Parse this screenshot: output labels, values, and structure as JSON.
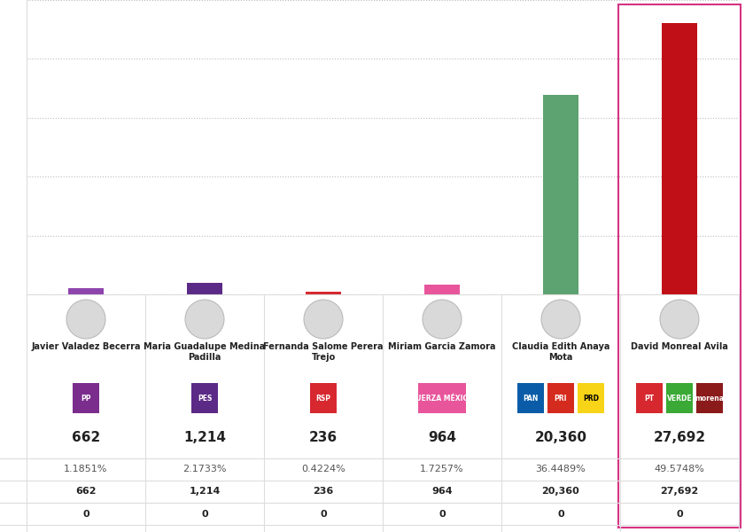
{
  "chart_data": {
    "type": "bar",
    "categories": [
      "Javier Valadez Becerra",
      "Maria Guadalupe Medina Padilla",
      "Fernanda Salome Perera Trejo",
      "Miriam Garcia Zamora",
      "Claudia Edith Anaya Mota",
      "David Monreal Avila"
    ],
    "values": [
      662,
      1214,
      236,
      964,
      20360,
      27692
    ],
    "value_labels": [
      "662",
      "1,214",
      "236",
      "964",
      "20,360",
      "27,692"
    ],
    "percentages": [
      1.1851,
      2.1733,
      0.4224,
      1.7257,
      36.4489,
      49.5748
    ],
    "percentage_labels": [
      "1.1851%",
      "2.1733%",
      "0.4224%",
      "1.7257%",
      "36.4489%",
      "49.5748%"
    ],
    "second_values": [
      0,
      0,
      0,
      0,
      0,
      0
    ],
    "parties": [
      [
        {
          "text": "PP",
          "color": "#7b2d8e"
        }
      ],
      [
        {
          "text": "PES",
          "color": "#5b2a86"
        }
      ],
      [
        {
          "text": "RSP",
          "color": "#d7282f"
        }
      ],
      [
        {
          "text": "FUERZA MÉXICO",
          "color": "#e8559b"
        }
      ],
      [
        {
          "text": "PAN",
          "color": "#0a5ca8"
        },
        {
          "text": "PRI",
          "color": "#d52b1e"
        },
        {
          "text": "PRD",
          "color": "#f7d417"
        }
      ],
      [
        {
          "text": "PT",
          "color": "#d7282f"
        },
        {
          "text": "VERDE",
          "color": "#3aa935"
        },
        {
          "text": "morena",
          "color": "#8b1a1a"
        }
      ]
    ],
    "colors": [
      "#8e44ad",
      "#5b2a86",
      "#d7282f",
      "#e8559b",
      "#5da271",
      "#c00f16"
    ],
    "ylim": [
      0,
      30000
    ],
    "yticks": [
      0,
      6000,
      12000,
      18000,
      24000,
      30000
    ],
    "grid": true,
    "tick_labels": false
  }
}
